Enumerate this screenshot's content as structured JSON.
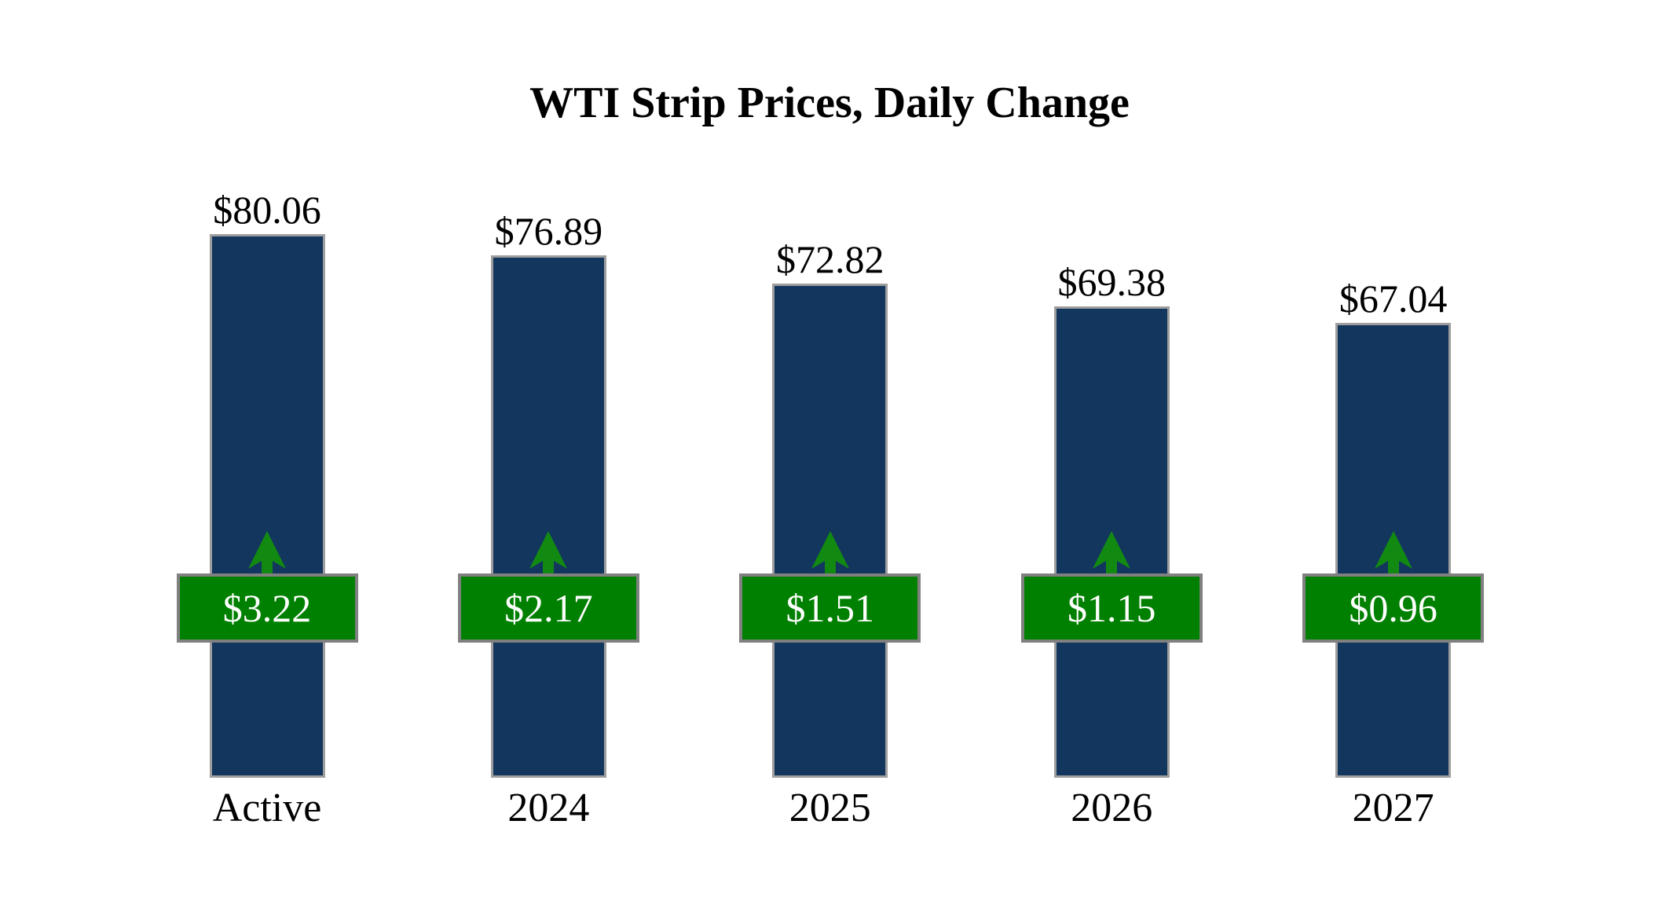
{
  "title": "WTI Strip Prices, Daily Change",
  "chart_data": {
    "type": "bar",
    "title": "WTI Strip Prices, Daily Change",
    "categories": [
      "Active",
      "2024",
      "2025",
      "2026",
      "2027"
    ],
    "series": [
      {
        "name": "WTI strip price ($/bbl)",
        "values": [
          80.06,
          76.89,
          72.82,
          69.38,
          67.04
        ],
        "labels": [
          "$80.06",
          "$76.89",
          "$72.82",
          "$69.38",
          "$67.04"
        ]
      },
      {
        "name": "Daily change ($/bbl)",
        "values": [
          3.22,
          2.17,
          1.51,
          1.15,
          0.96
        ],
        "labels": [
          "$3.22",
          "$2.17",
          "$1.51",
          "$1.15",
          "$0.96"
        ],
        "direction": "up"
      }
    ],
    "ylim": [
      0,
      80.06
    ],
    "grid": false,
    "legend_position": "none",
    "colors": {
      "bar_fill": "#12365E",
      "bar_border": "#9E9E9E",
      "badge_fill": "#008000",
      "badge_border": "#808080",
      "arrow": "#128A12",
      "value_text": "#000000",
      "badge_text": "#FFFFFF",
      "category_text": "#000000",
      "background": "#FFFFFF"
    }
  }
}
